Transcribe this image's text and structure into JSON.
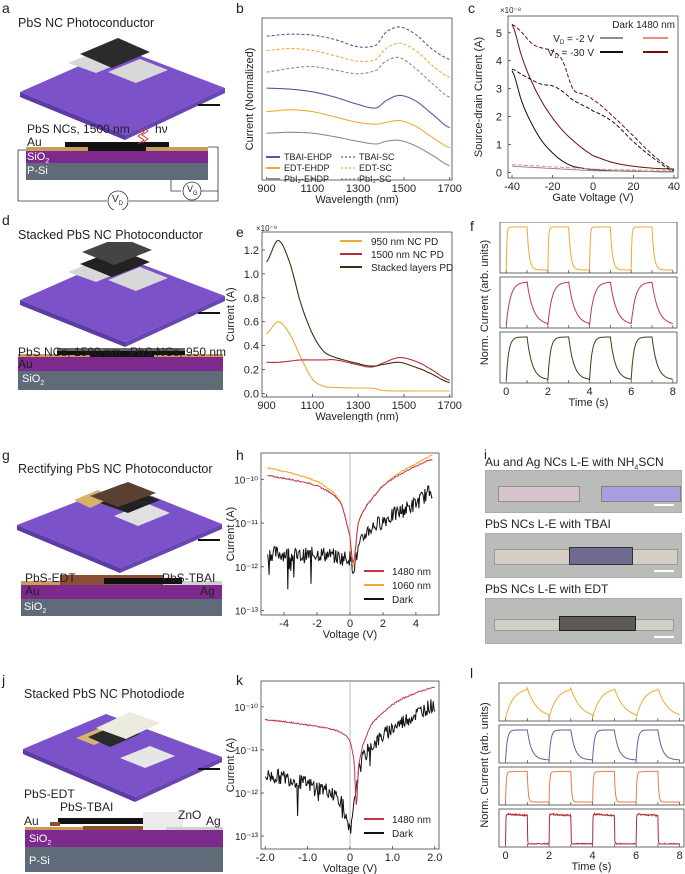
{
  "panels": {
    "a": {
      "letter": "a",
      "title": "PbS NC Photoconductor",
      "labels": {
        "nc": "PbS NCs, 1500 nm",
        "hv": "hν",
        "au": "Au",
        "sio2": "SiO",
        "sio2_sub": "2",
        "psi": "P-Si",
        "vd": "V",
        "vd_sub": "D",
        "vg": "V",
        "vg_sub": "G"
      }
    },
    "b": {
      "letter": "b"
    },
    "c": {
      "letter": "c"
    },
    "d": {
      "letter": "d",
      "title": "Stacked PbS NC Photoconductor",
      "labels": {
        "nc1": "PbS NCs, 1500 nm",
        "nc2": "PbS NCs, 950 nm",
        "au": "Au",
        "sio2": "SiO",
        "sio2_sub": "2",
        "psi": "P-Si"
      }
    },
    "e": {
      "letter": "e"
    },
    "f": {
      "letter": "f"
    },
    "g": {
      "letter": "g",
      "title": "Rectifying PbS NC Photoconductor",
      "labels": {
        "edt": "PbS-EDT",
        "tbai": "PbS-TBAI",
        "au": "Au",
        "ag": "Ag",
        "sio2": "SiO",
        "sio2_sub": "2",
        "psi": "P-Si"
      }
    },
    "h": {
      "letter": "h"
    },
    "i": {
      "letter": "i",
      "images": [
        {
          "caption": "Au and Ag NCs L-E with NH",
          "caption_sub": "4",
          "caption_tail": "SCN"
        },
        {
          "caption": "PbS NCs L-E with TBAI",
          "caption_sub": "",
          "caption_tail": ""
        },
        {
          "caption": "PbS NCs L-E with EDT",
          "caption_sub": "",
          "caption_tail": ""
        }
      ]
    },
    "j": {
      "letter": "j",
      "title": "Stacked PbS NC Photodiode",
      "labels": {
        "edt": "PbS-EDT",
        "tbai": "PbS-TBAI",
        "zno": "ZnO",
        "au": "Au",
        "ag": "Ag",
        "sio2": "SiO",
        "sio2_sub": "2",
        "psi": "P-Si"
      }
    },
    "k": {
      "letter": "k"
    },
    "l": {
      "letter": "l"
    }
  },
  "colors": {
    "purple_substrate": "#7b52c9",
    "sio2": "#7d2a8c",
    "psi": "#5f6b79",
    "au": "#c89c5a",
    "edt": "#8a4f35",
    "ag": "#cfcfcf",
    "zno": "#e8e8e8"
  },
  "chart_data": [
    {
      "id": "b",
      "type": "line",
      "title": "",
      "xlabel": "Wavelength (nm)",
      "ylabel": "Current (Normalized)",
      "xlim": [
        880,
        1710
      ],
      "xticks": [
        900,
        1100,
        1300,
        1500,
        1700
      ],
      "yticks": [],
      "x": [
        900,
        1000,
        1100,
        1200,
        1300,
        1380,
        1420,
        1480,
        1550,
        1620,
        1700
      ],
      "series": [
        {
          "name": "TBAI-EHDP",
          "style": "solid",
          "color": "#6b4fa0",
          "values": [
            6.3,
            6.25,
            6.1,
            5.8,
            5.4,
            5.2,
            5.6,
            5.9,
            5.6,
            4.9,
            4.1
          ]
        },
        {
          "name": "EDT-EHDP",
          "style": "solid",
          "color": "#f2a933",
          "values": [
            5.0,
            5.1,
            5.0,
            4.7,
            4.4,
            4.3,
            4.4,
            4.5,
            4.2,
            3.6,
            3.0
          ]
        },
        {
          "name": "PbI2-EHDP",
          "style": "solid",
          "color": "#8c8c8c",
          "values": [
            3.8,
            3.85,
            3.8,
            3.6,
            3.35,
            3.2,
            3.35,
            3.4,
            3.1,
            2.6,
            2.0
          ]
        },
        {
          "name": "TBAI-SC",
          "style": "dashed",
          "color": "#6b4fa0",
          "values": [
            9.2,
            9.3,
            9.25,
            9.0,
            8.6,
            8.7,
            9.4,
            9.7,
            9.3,
            8.5,
            7.9
          ]
        },
        {
          "name": "EDT-SC",
          "style": "dashed",
          "color": "#f2a933",
          "values": [
            8.4,
            8.5,
            8.4,
            8.1,
            7.8,
            7.9,
            8.5,
            8.8,
            8.4,
            7.6,
            6.9
          ]
        },
        {
          "name": "PbI2-SC",
          "style": "dashed",
          "color": "#8c8c8c",
          "values": [
            7.2,
            7.4,
            7.5,
            7.3,
            7.1,
            7.3,
            7.8,
            8.0,
            7.4,
            6.6,
            5.8
          ]
        }
      ],
      "legend": [
        "TBAI-EHDP",
        "TBAI-SC",
        "EDT-EHDP",
        "EDT-SC",
        "PbI₂-EHDP",
        "PbI₂-SC"
      ],
      "legend_placement": "bottom-left"
    },
    {
      "id": "c",
      "type": "line",
      "xlabel": "Gate Voltage (V)",
      "ylabel": "Source-drain Current (A)",
      "yexp": "×10⁻⁸",
      "xlim": [
        -42,
        42
      ],
      "ylim": [
        -0.2,
        5.6
      ],
      "xticks": [
        -40,
        -20,
        0,
        20,
        40
      ],
      "yticks": [
        0,
        1,
        2,
        3,
        4,
        5
      ],
      "legend_header": "Dark 1480 nm",
      "legend_rows": [
        {
          "label": "V",
          "sub": "D",
          "tail": " = -2 V",
          "dark": "#8c8c8c",
          "light": "#ef8a80"
        },
        {
          "label": "V",
          "sub": "D",
          "tail": " = -30 V",
          "dark": "#111111",
          "light": "#6a1010"
        }
      ],
      "x": [
        -40,
        -35,
        -30,
        -25,
        -20,
        -15,
        -10,
        -5,
        0,
        10,
        20,
        30,
        40
      ],
      "series": [
        {
          "name": "-30V 1480 fwd",
          "style": "solid",
          "color": "#6a1010",
          "values": [
            5.3,
            4.1,
            3.2,
            2.5,
            1.95,
            1.5,
            1.15,
            0.85,
            0.6,
            0.35,
            0.22,
            0.15,
            0.12
          ]
        },
        {
          "name": "-30V 1480 rev",
          "style": "dashed",
          "color": "#6a1010",
          "values": [
            5.3,
            5.0,
            4.6,
            4.45,
            4.35,
            4.0,
            3.0,
            2.8,
            2.6,
            2.0,
            1.3,
            0.6,
            0.1
          ]
        },
        {
          "name": "-30V dark fwd",
          "style": "solid",
          "color": "#111111",
          "values": [
            3.65,
            2.5,
            1.7,
            1.1,
            0.7,
            0.4,
            0.22,
            0.15,
            0.1,
            0.06,
            0.04,
            0.03,
            0.02
          ]
        },
        {
          "name": "-30V dark rev",
          "style": "dashed",
          "color": "#111111",
          "values": [
            3.7,
            3.5,
            3.3,
            3.15,
            3.1,
            2.9,
            2.6,
            2.4,
            2.2,
            1.8,
            1.1,
            0.5,
            0.05
          ]
        },
        {
          "name": "-2V 1480",
          "style": "dashed",
          "color": "#ef8a80",
          "values": [
            0.28,
            0.26,
            0.24,
            0.22,
            0.2,
            0.18,
            0.16,
            0.14,
            0.12,
            0.1,
            0.09,
            0.08,
            0.07
          ]
        },
        {
          "name": "-2V dark",
          "style": "solid",
          "color": "#8c8c8c",
          "values": [
            0.22,
            0.2,
            0.18,
            0.16,
            0.14,
            0.12,
            0.1,
            0.08,
            0.06,
            0.05,
            0.04,
            0.03,
            0.02
          ]
        }
      ]
    },
    {
      "id": "e",
      "type": "line",
      "xlabel": "Wavelength (nm)",
      "ylabel": "Current (A)",
      "yexp": "×10⁻⁹",
      "xlim": [
        880,
        1710
      ],
      "ylim": [
        -0.03,
        1.35
      ],
      "xticks": [
        900,
        1100,
        1300,
        1500,
        1700
      ],
      "yticks": [
        0.0,
        0.2,
        0.4,
        0.6,
        0.8,
        1.0,
        1.2
      ],
      "ytick_labels": [
        "0.0",
        "0.2",
        "0.4",
        "0.6",
        "0.8",
        "1.0",
        "1.2"
      ],
      "x": [
        900,
        950,
        1000,
        1050,
        1100,
        1150,
        1200,
        1300,
        1350,
        1380,
        1400,
        1480,
        1550,
        1600,
        1700
      ],
      "series": [
        {
          "name": "950 nm NC PD",
          "color": "#f2a933",
          "values": [
            0.5,
            0.6,
            0.5,
            0.3,
            0.12,
            0.06,
            0.05,
            0.045,
            0.045,
            0.04,
            0.025,
            0.02,
            0.02,
            0.02,
            0.02
          ]
        },
        {
          "name": "1500 nm NC PD",
          "color": "#b82c3a",
          "values": [
            0.26,
            0.26,
            0.27,
            0.28,
            0.28,
            0.28,
            0.28,
            0.24,
            0.22,
            0.23,
            0.25,
            0.3,
            0.27,
            0.22,
            0.11
          ]
        },
        {
          "name": "Stacked layers PD",
          "color": "#3d2f14",
          "values": [
            1.1,
            1.28,
            1.1,
            0.75,
            0.5,
            0.35,
            0.3,
            0.25,
            0.23,
            0.23,
            0.24,
            0.26,
            0.22,
            0.18,
            0.09
          ]
        }
      ],
      "legend_placement": "top-right"
    },
    {
      "id": "f",
      "type": "line",
      "xlabel": "Time (s)",
      "ylabel": "Norm. Current (arb. units)",
      "xlim": [
        -0.3,
        8.2
      ],
      "xticks": [
        0,
        2,
        4,
        6,
        8
      ],
      "subplots": [
        {
          "color": "#f2a933",
          "rise_tau": 0.03,
          "fall_tau": 0.1
        },
        {
          "color": "#c2374a",
          "rise_tau": 0.2,
          "fall_tau": 0.3
        },
        {
          "color": "#4a3b16",
          "rise_tau": 0.12,
          "fall_tau": 0.25
        }
      ]
    },
    {
      "id": "h",
      "type": "line",
      "xlabel": "Voltage (V)",
      "ylabel": "Current (A)",
      "yscale": "log",
      "xlim": [
        -5.4,
        5.4
      ],
      "ylim_log10": [
        -13.1,
        -9.4
      ],
      "xticks": [
        -4,
        -2,
        0,
        2,
        4
      ],
      "yticks_log10": [
        -13,
        -12,
        -11,
        -10
      ],
      "ytick_labels": [
        "10⁻¹³",
        "10⁻¹²",
        "10⁻¹¹",
        "10⁻¹⁰"
      ],
      "x": [
        -5,
        -4,
        -3,
        -2,
        -1,
        -0.5,
        0,
        0.2,
        0.5,
        1,
        2,
        3,
        4,
        5
      ],
      "series": [
        {
          "name": "1480 nm",
          "color": "#c2374a",
          "log10_values": [
            -9.92,
            -9.98,
            -10.05,
            -10.15,
            -10.35,
            -10.6,
            -11.3,
            -11.9,
            -11.0,
            -10.6,
            -10.15,
            -9.9,
            -9.7,
            -9.55
          ]
        },
        {
          "name": "1060 nm",
          "color": "#f2a933",
          "log10_values": [
            -9.75,
            -9.82,
            -9.92,
            -10.05,
            -10.3,
            -10.6,
            -11.3,
            -12.0,
            -11.0,
            -10.6,
            -10.15,
            -9.85,
            -9.65,
            -9.45
          ]
        },
        {
          "name": "Dark",
          "color": "#111111",
          "noisy": true,
          "log10_values": [
            -11.7,
            -11.7,
            -11.75,
            -11.7,
            -11.75,
            -11.8,
            -11.8,
            -12.0,
            -11.6,
            -11.2,
            -10.95,
            -10.75,
            -10.55,
            -10.25
          ]
        }
      ],
      "legend_placement": "bottom-right",
      "zero_line": true
    },
    {
      "id": "k",
      "type": "line",
      "xlabel": "Voltage (V)",
      "ylabel": "Current (A)",
      "yscale": "log",
      "xlim": [
        -2.1,
        2.1
      ],
      "ylim_log10": [
        -13.3,
        -9.4
      ],
      "xticks": [
        -2.0,
        -1.0,
        0,
        1.0,
        2.0
      ],
      "xtick_labels": [
        "-2.0",
        "-1.0",
        "0",
        "1.0",
        "2.0"
      ],
      "yticks_log10": [
        -13,
        -12,
        -11,
        -10
      ],
      "ytick_labels": [
        "10⁻¹³",
        "10⁻¹²",
        "10⁻¹¹",
        "10⁻¹⁰"
      ],
      "x": [
        -2.0,
        -1.5,
        -1.0,
        -0.5,
        -0.2,
        0,
        0.1,
        0.15,
        0.2,
        0.3,
        0.5,
        1.0,
        1.5,
        2.0
      ],
      "series": [
        {
          "name": "1480 nm",
          "color": "#c2374a",
          "log10_values": [
            -10.3,
            -10.35,
            -10.42,
            -10.5,
            -10.6,
            -10.8,
            -11.3,
            -12.3,
            -11.4,
            -10.9,
            -10.4,
            -9.95,
            -9.7,
            -9.55
          ]
        },
        {
          "name": "Dark",
          "color": "#111111",
          "noisy": true,
          "log10_values": [
            -11.6,
            -11.65,
            -11.8,
            -11.95,
            -12.2,
            -12.9,
            -12.3,
            -11.8,
            -11.5,
            -11.2,
            -10.9,
            -10.5,
            -10.2,
            -9.95
          ]
        }
      ],
      "legend_placement": "bottom-right",
      "zero_line": true
    },
    {
      "id": "l",
      "type": "line",
      "xlabel": "Time (s)",
      "ylabel": "Norm. Current (arb. units)",
      "xlim": [
        -0.3,
        8.2
      ],
      "xticks": [
        0,
        2,
        4,
        6,
        8
      ],
      "subplots": [
        {
          "color": "#f2a933",
          "rise_tau": 0.35,
          "fall_tau": 0.45
        },
        {
          "color": "#6a5aa8",
          "rise_tau": 0.08,
          "fall_tau": 0.2
        },
        {
          "color": "#ee7a45",
          "rise_tau": 0.03,
          "fall_tau": 0.04,
          "droop": -0.1
        },
        {
          "color": "#b32a3a",
          "rise_tau": 0.01,
          "fall_tau": 0.01,
          "droop": 0.12,
          "noise": true
        }
      ]
    }
  ]
}
